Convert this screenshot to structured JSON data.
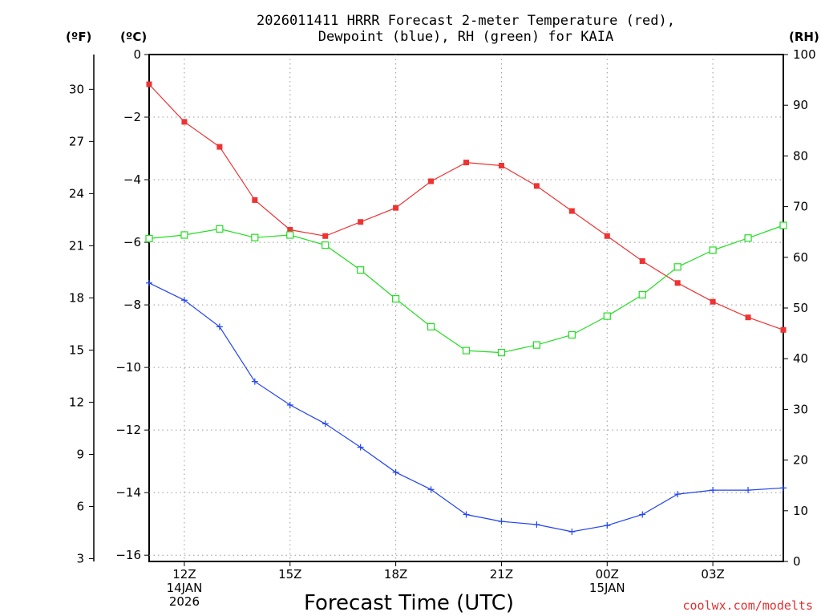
{
  "page": {
    "title_line1": "2026011411 HRRR Forecast 2-meter Temperature (red),",
    "title_line2": "Dewpoint (blue), RH (green) for KAIA",
    "unit_f": "(ºF)",
    "unit_c": "(ºC)",
    "unit_rh": "(RH)",
    "credit": "coolwx.com/modelts"
  },
  "colors": {
    "temperature": "#ee3333",
    "dewpoint": "#2244ee",
    "rh": "#22dd22",
    "grid": "#999999"
  },
  "chart_data": {
    "type": "line",
    "title": "2026011411 HRRR Forecast 2-meter Temperature (red), Dewpoint (blue), RH (green) for KAIA",
    "xlabel": "Forecast Time (UTC)",
    "ylabel_left_celsius": "(ºC)",
    "ylabel_left_fahrenheit": "(ºF)",
    "ylabel_right": "(RH)",
    "x_hours": [
      11,
      12,
      13,
      14,
      15,
      16,
      17,
      18,
      19,
      20,
      21,
      22,
      23,
      24,
      25,
      26,
      27,
      28,
      29
    ],
    "xlim": [
      11,
      29
    ],
    "x_ticks": [
      {
        "hour": 12,
        "lines": [
          "12Z",
          "14JAN",
          "2026"
        ]
      },
      {
        "hour": 15,
        "lines": [
          "15Z"
        ]
      },
      {
        "hour": 18,
        "lines": [
          "18Z"
        ]
      },
      {
        "hour": 21,
        "lines": [
          "21Z"
        ]
      },
      {
        "hour": 24,
        "lines": [
          "00Z",
          "15JAN"
        ]
      },
      {
        "hour": 27,
        "lines": [
          "03Z"
        ]
      }
    ],
    "ylim_celsius": [
      -16.2,
      0
    ],
    "ylim_rh": [
      0,
      100
    ],
    "celsius_ticks": [
      "0",
      "−2",
      "−4",
      "−6",
      "−8",
      "−10",
      "−12",
      "−14",
      "−16"
    ],
    "fahrenheit_ticks": [
      "3",
      "6",
      "9",
      "12",
      "15",
      "18",
      "21",
      "24",
      "27",
      "30"
    ],
    "rh_ticks": [
      "0",
      "10",
      "20",
      "30",
      "40",
      "50",
      "60",
      "70",
      "80",
      "90",
      "100"
    ],
    "series": [
      {
        "name": "Temperature",
        "units": "C",
        "color": "#ee3333",
        "marker": "filled-square",
        "values": [
          -0.95,
          -2.15,
          -2.95,
          -4.65,
          -5.6,
          -5.8,
          -5.35,
          -4.9,
          -4.05,
          -3.45,
          -3.55,
          -4.2,
          -5.0,
          -5.8,
          -6.6,
          -7.3,
          -7.9,
          -8.4,
          -8.8
        ]
      },
      {
        "name": "Dewpoint",
        "units": "C",
        "color": "#2244ee",
        "marker": "plus",
        "values": [
          -7.3,
          -7.85,
          -8.7,
          -10.45,
          -11.2,
          -11.8,
          -12.55,
          -13.35,
          -13.9,
          -14.7,
          -14.92,
          -15.02,
          -15.25,
          -15.05,
          -14.7,
          -14.05,
          -13.92,
          -13.92,
          -13.85
        ]
      },
      {
        "name": "RH",
        "units": "%",
        "color": "#22dd22",
        "marker": "open-square",
        "axis": "right",
        "values": [
          63.7,
          64.4,
          65.6,
          63.9,
          64.4,
          62.4,
          57.5,
          51.8,
          46.3,
          41.6,
          41.2,
          42.7,
          44.7,
          48.4,
          52.6,
          58.1,
          61.4,
          63.8,
          66.3
        ]
      }
    ]
  }
}
